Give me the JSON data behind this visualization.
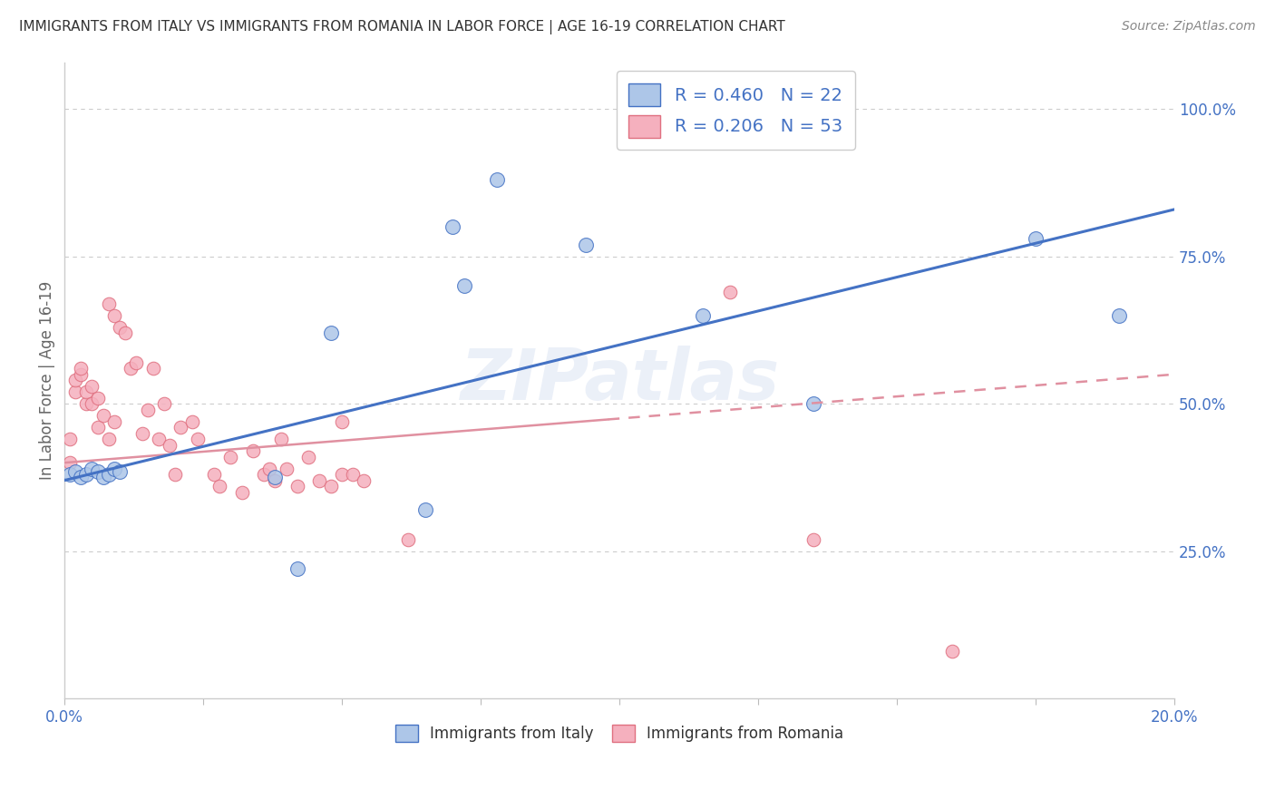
{
  "title": "IMMIGRANTS FROM ITALY VS IMMIGRANTS FROM ROMANIA IN LABOR FORCE | AGE 16-19 CORRELATION CHART",
  "source": "Source: ZipAtlas.com",
  "ylabel": "In Labor Force | Age 16-19",
  "italy_R": 0.46,
  "italy_N": 22,
  "romania_R": 0.206,
  "romania_N": 53,
  "italy_color": "#adc6e8",
  "italy_edge_color": "#4472c4",
  "romania_color": "#f5b0be",
  "romania_edge_color": "#e07080",
  "italy_line_color": "#4472c4",
  "romania_line_color": "#e090a0",
  "legend_text_color": "#4472c4",
  "watermark": "ZIPatlas",
  "background_color": "#ffffff",
  "grid_color": "#cccccc",
  "xlim": [
    0.0,
    0.2
  ],
  "ylim": [
    0.0,
    1.08
  ],
  "ytick_positions": [
    0.25,
    0.5,
    0.75,
    1.0
  ],
  "ytick_labels": [
    "25.0%",
    "50.0%",
    "75.0%",
    "100.0%"
  ],
  "italy_line_x0": 0.0,
  "italy_line_y0": 0.37,
  "italy_line_x1": 0.2,
  "italy_line_y1": 0.83,
  "romania_line_x0": 0.0,
  "romania_line_y0": 0.4,
  "romania_line_x1": 0.2,
  "romania_line_y1": 0.55,
  "italy_scatter_x": [
    0.001,
    0.002,
    0.003,
    0.004,
    0.005,
    0.006,
    0.007,
    0.008,
    0.009,
    0.01,
    0.038,
    0.042,
    0.048,
    0.065,
    0.07,
    0.072,
    0.078,
    0.094,
    0.115,
    0.135,
    0.175,
    0.19
  ],
  "italy_scatter_y": [
    0.38,
    0.385,
    0.375,
    0.38,
    0.39,
    0.385,
    0.375,
    0.38,
    0.39,
    0.385,
    0.375,
    0.22,
    0.62,
    0.32,
    0.8,
    0.7,
    0.88,
    0.77,
    0.65,
    0.5,
    0.78,
    0.65
  ],
  "romania_scatter_x": [
    0.001,
    0.001,
    0.002,
    0.002,
    0.003,
    0.003,
    0.004,
    0.004,
    0.005,
    0.005,
    0.006,
    0.006,
    0.007,
    0.008,
    0.008,
    0.009,
    0.009,
    0.01,
    0.011,
    0.012,
    0.013,
    0.014,
    0.015,
    0.016,
    0.017,
    0.018,
    0.019,
    0.02,
    0.021,
    0.023,
    0.024,
    0.027,
    0.028,
    0.03,
    0.032,
    0.034,
    0.036,
    0.037,
    0.038,
    0.039,
    0.04,
    0.042,
    0.044,
    0.046,
    0.048,
    0.05,
    0.052,
    0.054,
    0.062,
    0.12,
    0.135,
    0.16,
    0.05
  ],
  "romania_scatter_y": [
    0.4,
    0.44,
    0.52,
    0.54,
    0.55,
    0.56,
    0.5,
    0.52,
    0.53,
    0.5,
    0.51,
    0.46,
    0.48,
    0.44,
    0.67,
    0.65,
    0.47,
    0.63,
    0.62,
    0.56,
    0.57,
    0.45,
    0.49,
    0.56,
    0.44,
    0.5,
    0.43,
    0.38,
    0.46,
    0.47,
    0.44,
    0.38,
    0.36,
    0.41,
    0.35,
    0.42,
    0.38,
    0.39,
    0.37,
    0.44,
    0.39,
    0.36,
    0.41,
    0.37,
    0.36,
    0.38,
    0.38,
    0.37,
    0.27,
    0.69,
    0.27,
    0.08,
    0.47
  ]
}
